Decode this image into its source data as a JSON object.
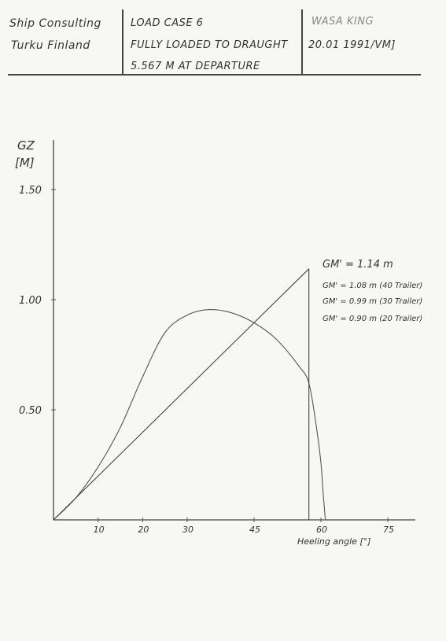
{
  "header": {
    "company_line1": "Ship Consulting",
    "company_line2": "Turku Finland",
    "case_line1": "LOAD CASE 6",
    "case_line2": "FULLY LOADED TO DRAUGHT",
    "case_line3": "5.567 M  AT DEPARTURE",
    "vessel_line1": "WASA KING",
    "vessel_line2": "20.01  1991/VM]"
  },
  "chart_data": {
    "type": "line",
    "title": "",
    "ylabel": "GZ\n[M]",
    "xlabel": "Heeling angle [°]",
    "xlim": [
      0,
      77
    ],
    "ylim": [
      0,
      1.55
    ],
    "y_ticks": [
      {
        "value": 0.5,
        "label": "0.50"
      },
      {
        "value": 1.0,
        "label": "1.00"
      },
      {
        "value": 1.5,
        "label": "1.50"
      }
    ],
    "x_ticks": [
      {
        "value": 10,
        "label": "10"
      },
      {
        "value": 20,
        "label": "20"
      },
      {
        "value": 30,
        "label": "30"
      },
      {
        "value": 45,
        "label": "45"
      },
      {
        "value": 60,
        "label": "60"
      },
      {
        "value": 75,
        "label": "75"
      }
    ],
    "series": [
      {
        "x": [
          0,
          5,
          10,
          15,
          20,
          25,
          30,
          35,
          40,
          45,
          50,
          55,
          57.3,
          59,
          60,
          60.5,
          61
        ],
        "values": [
          0,
          0.1,
          0.24,
          0.42,
          0.65,
          0.85,
          0.93,
          0.955,
          0.94,
          0.895,
          0.82,
          0.7,
          0.62,
          0.42,
          0.26,
          0.12,
          0
        ]
      },
      {
        "x": [
          0,
          57.3
        ],
        "values": [
          0,
          1.14
        ]
      }
    ],
    "vertical_line": {
      "x": 57.3,
      "y_top": 1.14
    },
    "annotations": [
      "GM' = 1.14 m",
      "GM' = 1.08 m (40 Trailer)",
      "GM' = 0.99 m (30 Trailer)",
      "GM' = 0.90 m (20 Trailer)"
    ]
  }
}
